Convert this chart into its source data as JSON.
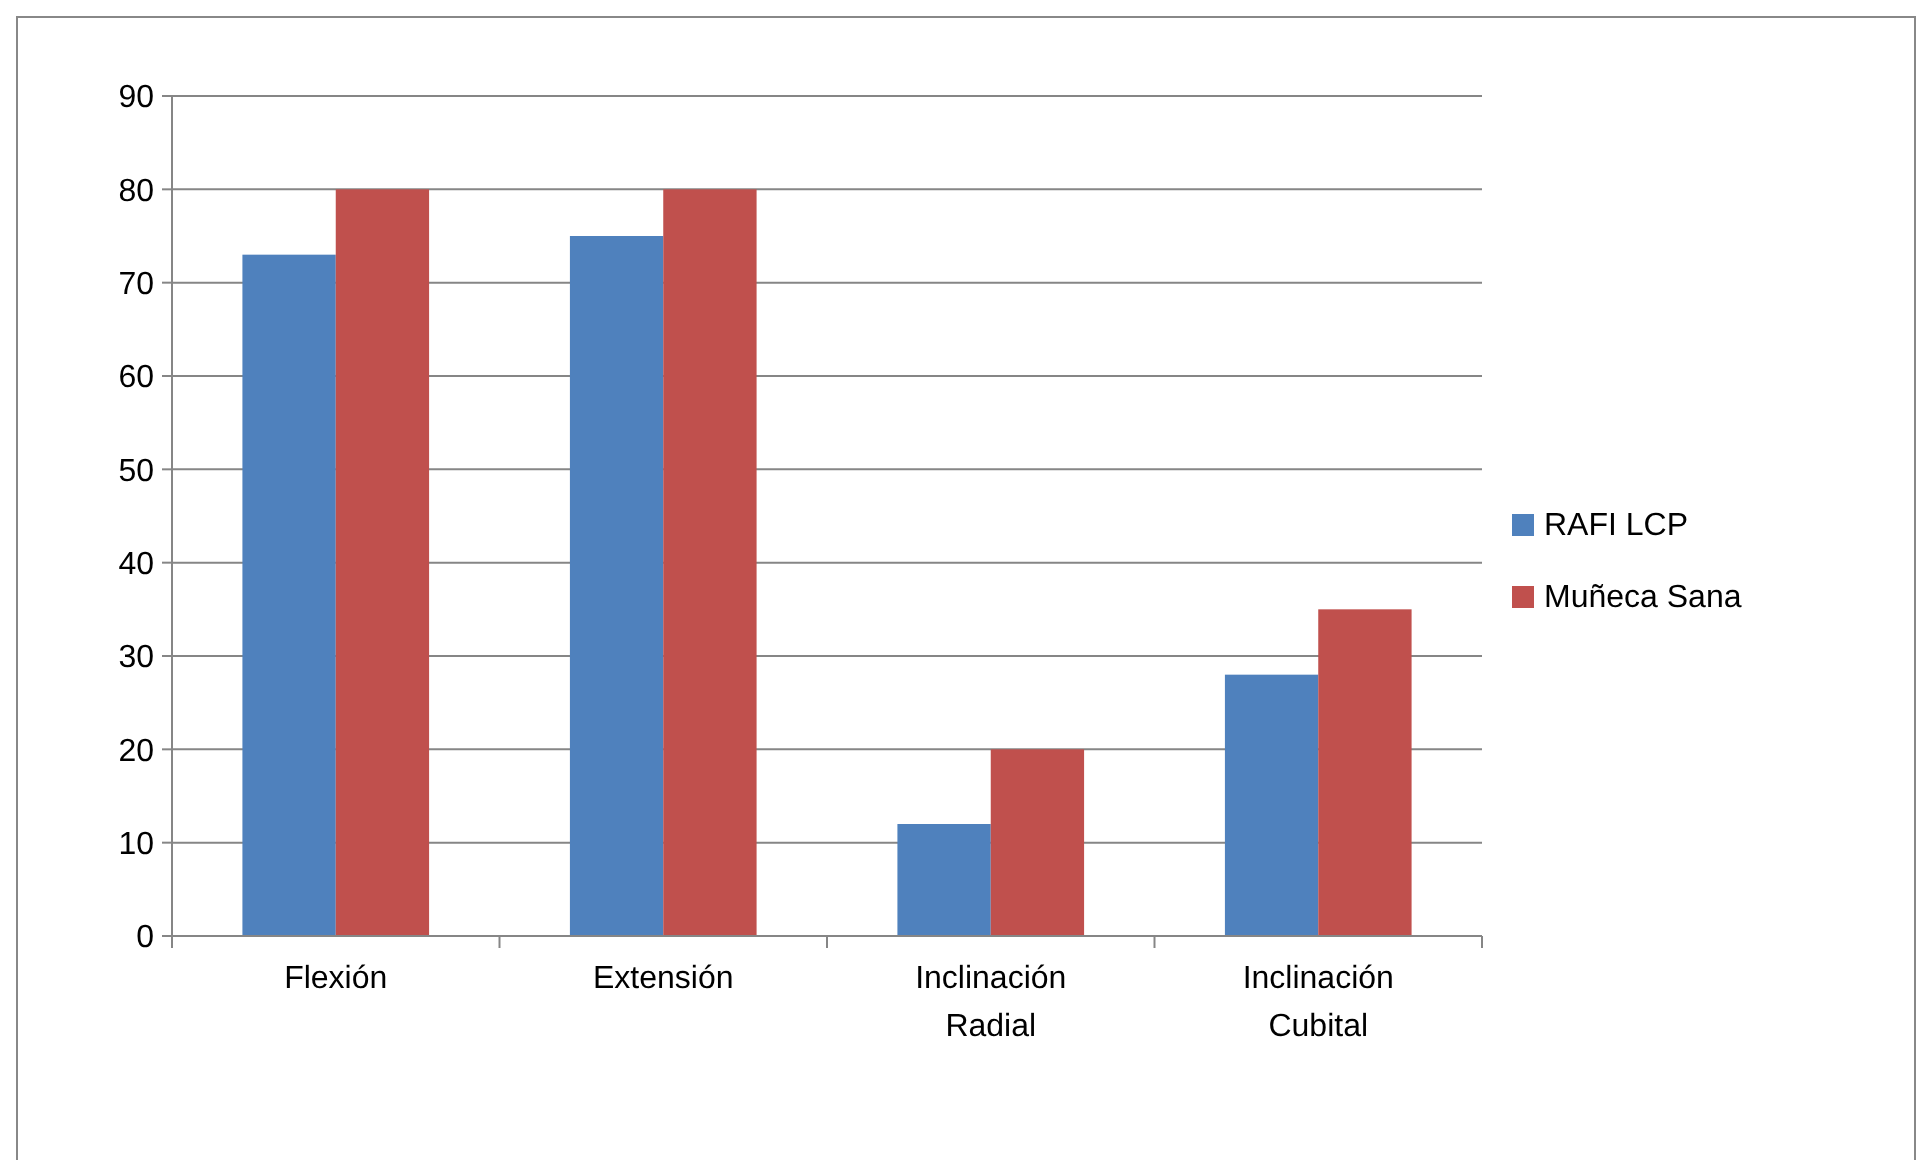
{
  "chart_data": {
    "type": "bar",
    "categories": [
      "Flexión",
      "Extensión",
      "Inclinación Radial",
      "Inclinación Cubital"
    ],
    "series": [
      {
        "name": "RAFI LCP",
        "color": "#4f81bd",
        "values": [
          73,
          75,
          12,
          28
        ]
      },
      {
        "name": "Muñeca Sana",
        "color": "#c0504d",
        "values": [
          80,
          80,
          20,
          35
        ]
      }
    ],
    "ylim": [
      0,
      90
    ],
    "yticks": [
      0,
      10,
      20,
      30,
      40,
      50,
      60,
      70,
      80,
      90
    ],
    "grid": "y",
    "legend": "right"
  }
}
